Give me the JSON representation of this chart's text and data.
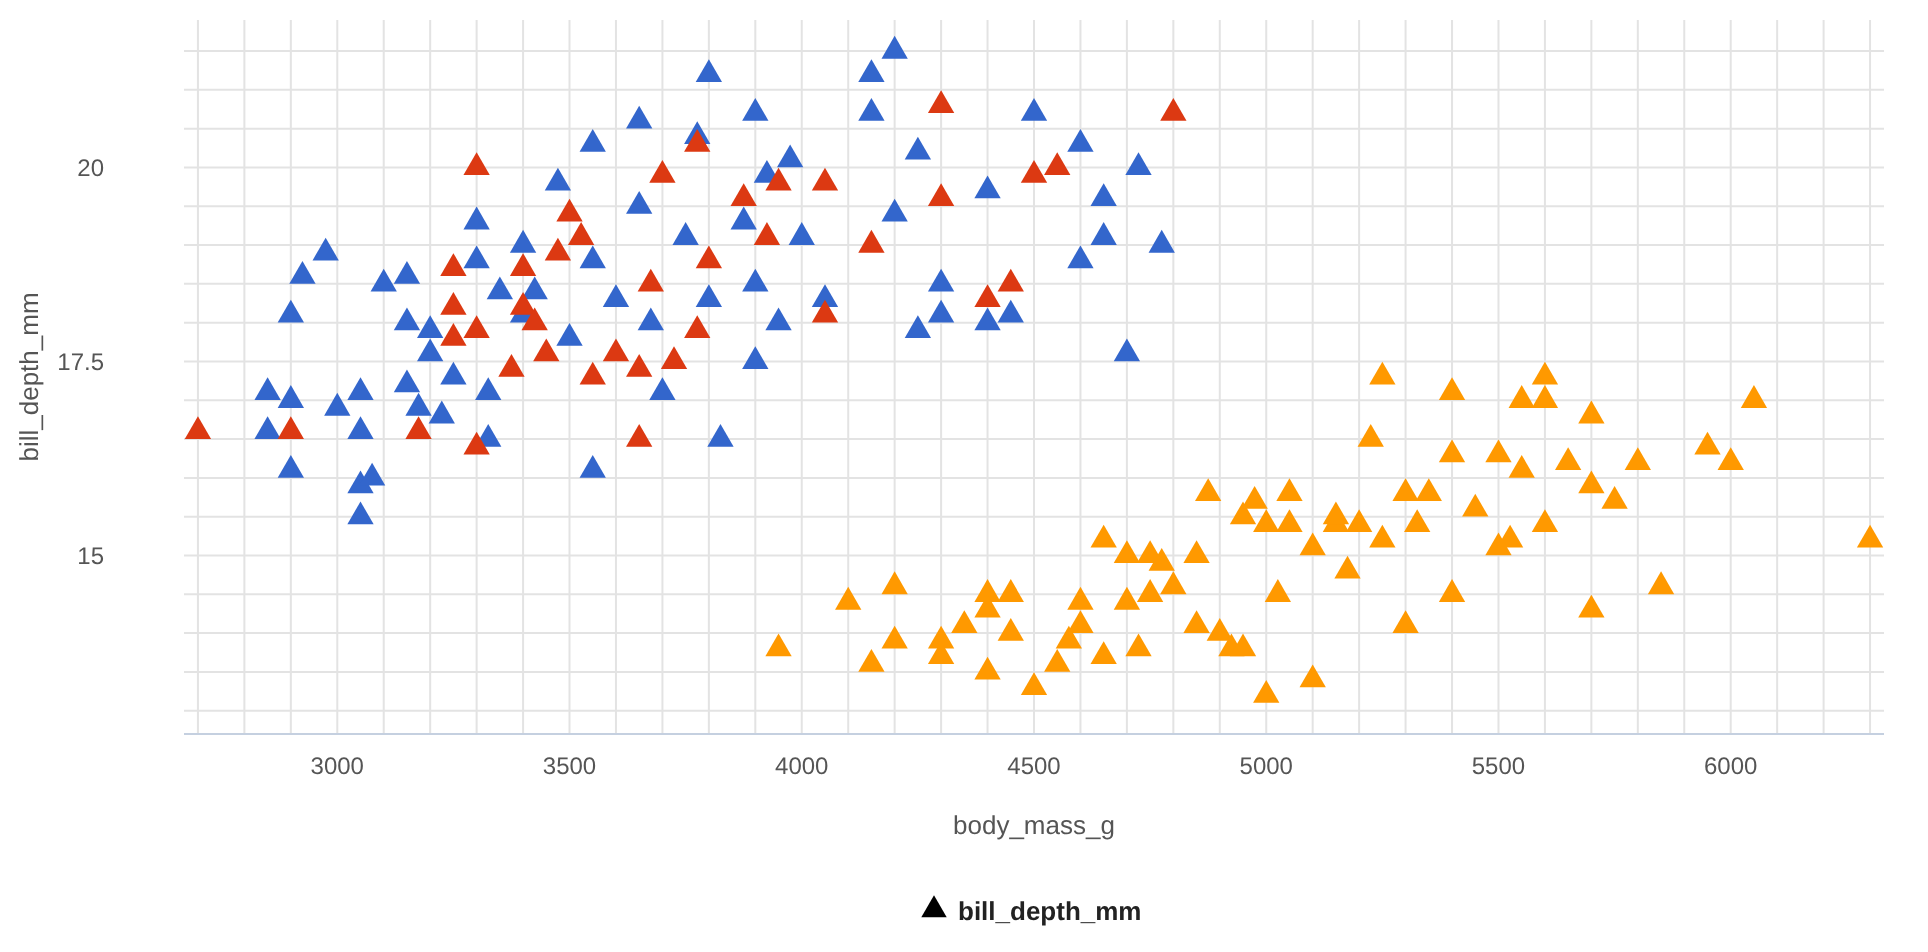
{
  "chart_data": {
    "type": "scatter",
    "xlabel": "body_mass_g",
    "ylabel": "bill_depth_mm",
    "xlim": [
      2670,
      6330
    ],
    "ylim": [
      12.7,
      21.9
    ],
    "xticks": [
      {
        "value": 2700,
        "label": null
      },
      {
        "value": 2800,
        "label": null
      },
      {
        "value": 2900,
        "label": null
      },
      3000,
      {
        "value": 3100,
        "label": null
      },
      {
        "value": 3200,
        "label": null
      },
      {
        "value": 3300,
        "label": null
      },
      {
        "value": 3400,
        "label": null
      },
      3500,
      {
        "value": 3600,
        "label": null
      },
      {
        "value": 3700,
        "label": null
      },
      {
        "value": 3800,
        "label": null
      },
      {
        "value": 3900,
        "label": null
      },
      4000,
      {
        "value": 4100,
        "label": null
      },
      {
        "value": 4200,
        "label": null
      },
      {
        "value": 4300,
        "label": null
      },
      {
        "value": 4400,
        "label": null
      },
      4500,
      {
        "value": 4600,
        "label": null
      },
      {
        "value": 4700,
        "label": null
      },
      {
        "value": 4800,
        "label": null
      },
      {
        "value": 4900,
        "label": null
      },
      5000,
      {
        "value": 5100,
        "label": null
      },
      {
        "value": 5200,
        "label": null
      },
      {
        "value": 5300,
        "label": null
      },
      {
        "value": 5400,
        "label": null
      },
      5500,
      {
        "value": 5600,
        "label": null
      },
      {
        "value": 5700,
        "label": null
      },
      {
        "value": 5800,
        "label": null
      },
      {
        "value": 5900,
        "label": null
      },
      6000,
      {
        "value": 6100,
        "label": null
      },
      {
        "value": 6200,
        "label": null
      },
      {
        "value": 6300,
        "label": null
      }
    ],
    "yticks": [
      {
        "value": 13,
        "label": null
      },
      {
        "value": 13.5,
        "label": null
      },
      {
        "value": 14,
        "label": null
      },
      {
        "value": 14.5,
        "label": null
      },
      15,
      {
        "value": 15.5,
        "label": null
      },
      {
        "value": 16,
        "label": null
      },
      {
        "value": 16.5,
        "label": null
      },
      {
        "value": 17,
        "label": null
      },
      17.5,
      {
        "value": 18,
        "label": null
      },
      {
        "value": 18.5,
        "label": null
      },
      {
        "value": 19,
        "label": null
      },
      {
        "value": 19.5,
        "label": null
      },
      20,
      {
        "value": 20.5,
        "label": null
      },
      {
        "value": 21,
        "label": null
      },
      {
        "value": 21.5,
        "label": null
      }
    ],
    "grid": true,
    "legend": "bottom",
    "marker": "triangle",
    "series": [
      {
        "name": "bill_depth_mm",
        "color": "#000000",
        "x": [
          2850,
          2850,
          2900,
          2900,
          2900,
          2925,
          2975,
          3000,
          3050,
          3050,
          3050,
          3050,
          3075,
          3100,
          3150,
          3150,
          3150,
          3175,
          3200,
          3200,
          3225,
          3250,
          3300,
          3300,
          3325,
          3325,
          3350,
          3400,
          3400,
          3425,
          3475,
          3500,
          3550,
          3550,
          3550,
          3600,
          3650,
          3650,
          3675,
          3700,
          3750,
          3775,
          3800,
          3800,
          3825,
          3875,
          3900,
          3900,
          3900,
          3925,
          3950,
          3975,
          4000,
          4050,
          4150,
          4150,
          4200,
          4200,
          4250,
          4250,
          4300,
          4300,
          4400,
          4400,
          4450,
          4500,
          4600,
          4600,
          4650,
          4650,
          4700,
          4725,
          4775,
          2700,
          2900,
          3300,
          3250,
          3250,
          3250,
          3300,
          3375,
          3400,
          3400,
          3425,
          3450,
          3475,
          3500,
          3525,
          3550,
          3600,
          3650,
          3650,
          3675,
          3700,
          3725,
          3775,
          3775,
          3800,
          3875,
          3925,
          3950,
          4050,
          4050,
          4150,
          4300,
          4300,
          4400,
          4500,
          4550,
          4800,
          4450,
          3175,
          3300,
          3950,
          4100,
          4150,
          4200,
          4200,
          4300,
          4300,
          4350,
          4400,
          4400,
          4400,
          4450,
          4450,
          4500,
          4550,
          4575,
          4600,
          4600,
          4650,
          4650,
          4700,
          4700,
          4725,
          4750,
          4750,
          4800,
          4850,
          4850,
          4875,
          4900,
          4925,
          4950,
          4950,
          4975,
          5000,
          5000,
          5025,
          5050,
          5050,
          5100,
          5100,
          5150,
          5175,
          5200,
          5225,
          5250,
          5300,
          5300,
          5325,
          5350,
          5400,
          5400,
          5400,
          5450,
          5500,
          5500,
          5550,
          5550,
          5600,
          5600,
          5650,
          5700,
          5700,
          5700,
          5750,
          5800,
          5850,
          5950,
          6000,
          6050,
          6300,
          5600,
          5525,
          5150,
          4775,
          5250
        ],
        "values": [
          17.1,
          16.6,
          18.1,
          17.0,
          16.1,
          18.6,
          18.9,
          16.9,
          17.1,
          16.6,
          15.9,
          15.5,
          16.0,
          18.5,
          18.6,
          18.0,
          17.2,
          16.9,
          17.6,
          17.9,
          16.8,
          17.3,
          18.8,
          19.3,
          17.1,
          16.5,
          18.4,
          19.0,
          18.1,
          18.4,
          19.8,
          17.8,
          20.3,
          16.1,
          18.8,
          18.3,
          20.6,
          19.5,
          18.0,
          17.1,
          19.1,
          20.4,
          21.2,
          18.3,
          16.5,
          19.3,
          20.7,
          18.5,
          17.5,
          19.9,
          18.0,
          20.1,
          19.1,
          18.3,
          20.7,
          21.2,
          21.5,
          19.4,
          20.2,
          17.9,
          18.5,
          18.1,
          19.7,
          18.0,
          18.1,
          20.7,
          20.3,
          18.8,
          19.6,
          19.1,
          17.6,
          20.0,
          19.0,
          16.6,
          16.6,
          20.0,
          18.7,
          18.2,
          17.8,
          17.9,
          17.4,
          18.7,
          18.2,
          18.0,
          17.6,
          18.9,
          19.4,
          19.1,
          17.3,
          17.6,
          16.5,
          17.4,
          18.5,
          19.9,
          17.5,
          17.9,
          20.3,
          18.8,
          19.6,
          19.1,
          19.8,
          19.8,
          18.1,
          19.0,
          20.8,
          19.6,
          18.3,
          19.9,
          20.0,
          20.7,
          18.5,
          16.6,
          16.4,
          13.8,
          14.4,
          13.6,
          14.6,
          13.9,
          13.9,
          13.7,
          14.1,
          14.5,
          14.3,
          13.5,
          14.5,
          14.0,
          13.3,
          13.6,
          13.9,
          14.4,
          14.1,
          15.2,
          13.7,
          15.0,
          14.4,
          13.8,
          15.0,
          14.5,
          14.6,
          15.0,
          14.1,
          15.8,
          14.0,
          13.8,
          13.8,
          15.5,
          15.7,
          13.2,
          15.4,
          14.5,
          15.8,
          15.4,
          13.4,
          15.1,
          15.4,
          14.8,
          15.4,
          16.5,
          17.3,
          15.8,
          14.1,
          15.4,
          15.8,
          17.1,
          16.3,
          14.5,
          15.6,
          16.3,
          15.1,
          17.0,
          16.1,
          17.3,
          17.0,
          16.2,
          16.8,
          15.9,
          14.3,
          15.7,
          16.2,
          14.6,
          16.4,
          16.2,
          17.0,
          15.2,
          15.4,
          15.2,
          15.5,
          14.9,
          15.2
        ],
        "colors": [
          "#3366cc",
          "#3366cc",
          "#3366cc",
          "#3366cc",
          "#3366cc",
          "#3366cc",
          "#3366cc",
          "#3366cc",
          "#3366cc",
          "#3366cc",
          "#3366cc",
          "#3366cc",
          "#3366cc",
          "#3366cc",
          "#3366cc",
          "#3366cc",
          "#3366cc",
          "#3366cc",
          "#3366cc",
          "#3366cc",
          "#3366cc",
          "#3366cc",
          "#3366cc",
          "#3366cc",
          "#3366cc",
          "#3366cc",
          "#3366cc",
          "#3366cc",
          "#3366cc",
          "#3366cc",
          "#3366cc",
          "#3366cc",
          "#3366cc",
          "#3366cc",
          "#3366cc",
          "#3366cc",
          "#3366cc",
          "#3366cc",
          "#3366cc",
          "#3366cc",
          "#3366cc",
          "#3366cc",
          "#3366cc",
          "#3366cc",
          "#3366cc",
          "#3366cc",
          "#3366cc",
          "#3366cc",
          "#3366cc",
          "#3366cc",
          "#3366cc",
          "#3366cc",
          "#3366cc",
          "#3366cc",
          "#3366cc",
          "#3366cc",
          "#3366cc",
          "#3366cc",
          "#3366cc",
          "#3366cc",
          "#3366cc",
          "#3366cc",
          "#3366cc",
          "#3366cc",
          "#3366cc",
          "#3366cc",
          "#3366cc",
          "#3366cc",
          "#3366cc",
          "#3366cc",
          "#3366cc",
          "#3366cc",
          "#3366cc",
          "#dc3912",
          "#dc3912",
          "#dc3912",
          "#dc3912",
          "#dc3912",
          "#dc3912",
          "#dc3912",
          "#dc3912",
          "#dc3912",
          "#dc3912",
          "#dc3912",
          "#dc3912",
          "#dc3912",
          "#dc3912",
          "#dc3912",
          "#dc3912",
          "#dc3912",
          "#dc3912",
          "#dc3912",
          "#dc3912",
          "#dc3912",
          "#dc3912",
          "#dc3912",
          "#dc3912",
          "#dc3912",
          "#dc3912",
          "#dc3912",
          "#dc3912",
          "#dc3912",
          "#dc3912",
          "#dc3912",
          "#dc3912",
          "#dc3912",
          "#dc3912",
          "#dc3912",
          "#dc3912",
          "#dc3912",
          "#dc3912",
          "#dc3912",
          "#dc3912",
          "#ff9900",
          "#ff9900",
          "#ff9900",
          "#ff9900",
          "#ff9900",
          "#ff9900",
          "#ff9900",
          "#ff9900",
          "#ff9900",
          "#ff9900",
          "#ff9900",
          "#ff9900",
          "#ff9900",
          "#ff9900",
          "#ff9900",
          "#ff9900",
          "#ff9900",
          "#ff9900",
          "#ff9900",
          "#ff9900",
          "#ff9900",
          "#ff9900",
          "#ff9900",
          "#ff9900",
          "#ff9900",
          "#ff9900",
          "#ff9900",
          "#ff9900",
          "#ff9900",
          "#ff9900",
          "#ff9900",
          "#ff9900",
          "#ff9900",
          "#ff9900",
          "#ff9900",
          "#ff9900",
          "#ff9900",
          "#ff9900",
          "#ff9900",
          "#ff9900",
          "#ff9900",
          "#ff9900",
          "#ff9900",
          "#ff9900",
          "#ff9900",
          "#ff9900",
          "#ff9900",
          "#ff9900",
          "#ff9900",
          "#ff9900",
          "#ff9900",
          "#ff9900",
          "#ff9900",
          "#ff9900",
          "#ff9900",
          "#ff9900",
          "#ff9900",
          "#ff9900",
          "#ff9900",
          "#ff9900",
          "#ff9900",
          "#ff9900",
          "#ff9900",
          "#ff9900",
          "#ff9900",
          "#ff9900",
          "#ff9900",
          "#ff9900",
          "#ff9900",
          "#ff9900",
          "#ff9900",
          "#ff9900",
          "#ff9900",
          "#ff9900",
          "#ff9900",
          "#ff9900"
        ]
      }
    ]
  }
}
